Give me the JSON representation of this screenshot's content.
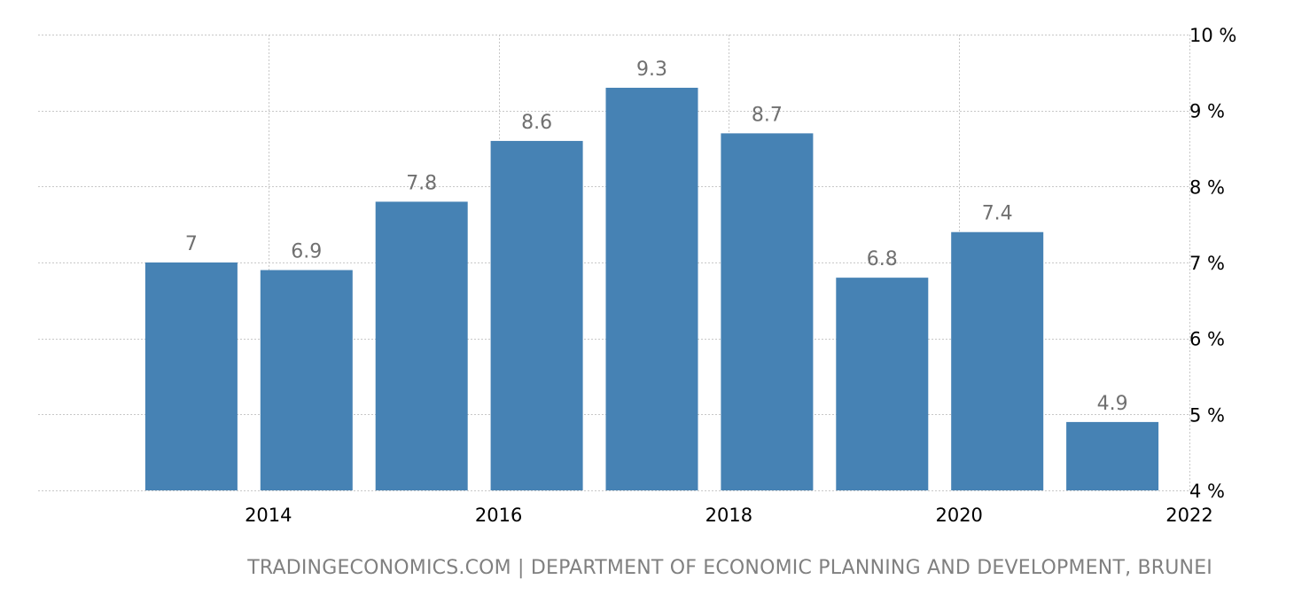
{
  "chart_data": {
    "type": "bar",
    "categories": [
      "2013",
      "2014",
      "2015",
      "2016",
      "2017",
      "2018",
      "2019",
      "2020",
      "2021"
    ],
    "values": [
      7,
      6.9,
      7.8,
      8.6,
      9.3,
      8.7,
      6.8,
      7.4,
      4.9
    ],
    "value_labels": [
      "7",
      "6.9",
      "7.8",
      "8.6",
      "9.3",
      "8.7",
      "6.8",
      "7.4",
      "4.9"
    ],
    "x_tick_labels": [
      "2014",
      "2016",
      "2018",
      "2020",
      "2022"
    ],
    "x_tick_values": [
      2014,
      2016,
      2018,
      2020,
      2022
    ],
    "y_tick_labels": [
      "4 %",
      "5 %",
      "6 %",
      "7 %",
      "8 %",
      "9 %",
      "10 %"
    ],
    "y_tick_values": [
      4,
      5,
      6,
      7,
      8,
      9,
      10
    ],
    "ylim": [
      4,
      10
    ],
    "xlim": [
      2012.0,
      2022.0
    ],
    "grid": true,
    "y_axis_position": "right",
    "title": "",
    "xlabel": "",
    "ylabel": "",
    "colors": {
      "bar": "#4682b4",
      "data_label": "#707070",
      "grid": "#c8c8c8",
      "tick": "#000000",
      "source": "#808080"
    }
  },
  "source_text": "TRADINGECONOMICS.COM | DEPARTMENT OF ECONOMIC PLANNING AND DEVELOPMENT, BRUNEI"
}
